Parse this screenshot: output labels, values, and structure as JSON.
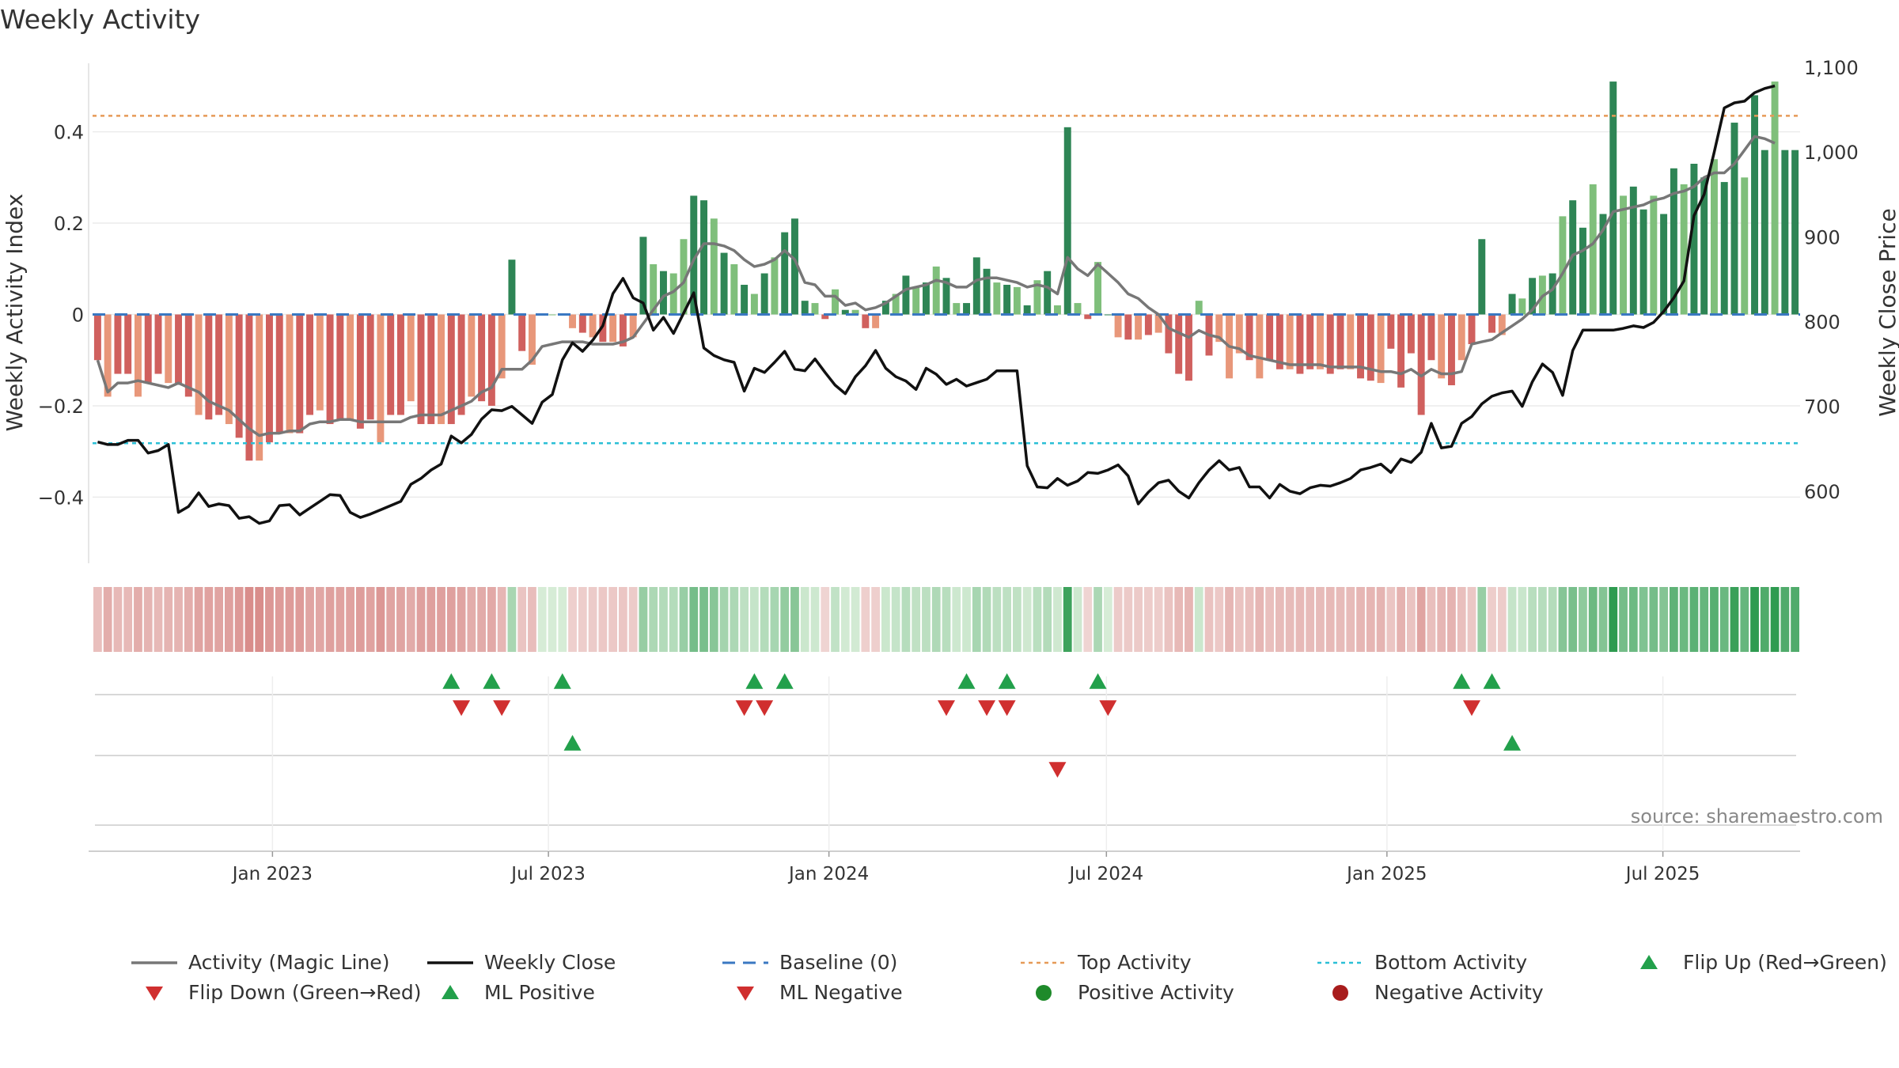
{
  "chart_data": {
    "type": "bar+line",
    "title": "Weekly Activity",
    "ylabel_left": "Weekly Activity Index",
    "ylabel_right": "Weekly Close Price",
    "source": "source: sharemaestro.com",
    "left_ylim": [
      -0.55,
      0.55
    ],
    "left_ticks": [
      {
        "v": 0.4,
        "label": "0.4"
      },
      {
        "v": 0.2,
        "label": "0.2"
      },
      {
        "v": 0,
        "label": "0"
      },
      {
        "v": -0.2,
        "label": "−0.2"
      },
      {
        "v": -0.4,
        "label": "−0.4"
      }
    ],
    "right_ylim": [
      515,
      1100
    ],
    "right_ticks": [
      {
        "v": 1100,
        "label": "1,100"
      },
      {
        "v": 1000,
        "label": "1,000"
      },
      {
        "v": 900,
        "label": "900"
      },
      {
        "v": 800,
        "label": "800"
      },
      {
        "v": 700,
        "label": "700"
      },
      {
        "v": 600,
        "label": "600"
      }
    ],
    "top_activity_level": 0.435,
    "bottom_activity_level": -0.282,
    "x_start": "2022-09-05",
    "x_end": "2025-09-29",
    "x_ticks": [
      {
        "date": "2023-01-01",
        "label": "Jan 2023"
      },
      {
        "date": "2023-07-01",
        "label": "Jul 2023"
      },
      {
        "date": "2024-01-01",
        "label": "Jan 2024"
      },
      {
        "date": "2024-07-01",
        "label": "Jul 2024"
      },
      {
        "date": "2025-01-01",
        "label": "Jan 2025"
      },
      {
        "date": "2025-07-01",
        "label": "Jul 2025"
      }
    ],
    "series": [
      {
        "name": "Weekly Activity",
        "kind": "bar",
        "values": [
          -0.1,
          -0.18,
          -0.13,
          -0.13,
          -0.18,
          -0.15,
          -0.13,
          -0.15,
          -0.15,
          -0.18,
          -0.22,
          -0.23,
          -0.22,
          -0.24,
          -0.27,
          -0.32,
          -0.32,
          -0.28,
          -0.26,
          -0.26,
          -0.26,
          -0.22,
          -0.21,
          -0.24,
          -0.23,
          -0.23,
          -0.25,
          -0.23,
          -0.28,
          -0.22,
          -0.22,
          -0.19,
          -0.24,
          -0.24,
          -0.24,
          -0.24,
          -0.22,
          -0.18,
          -0.19,
          -0.2,
          -0.14,
          0.12,
          -0.08,
          -0.11,
          0,
          0,
          0,
          -0.03,
          -0.04,
          -0.05,
          -0.06,
          -0.06,
          -0.07,
          -0.05,
          0.17,
          0.11,
          0.095,
          0.09,
          0.165,
          0.26,
          0.25,
          0.21,
          0.135,
          0.11,
          0.065,
          0.045,
          0.09,
          0.125,
          0.18,
          0.21,
          0.03,
          0.025,
          -0.01,
          0.055,
          0.01,
          0.01,
          -0.03,
          -0.03,
          0.03,
          0.045,
          0.085,
          0.06,
          0.07,
          0.105,
          0.08,
          0.025,
          0.025,
          0.125,
          0.1,
          0.07,
          0.065,
          0.06,
          0.02,
          0.075,
          0.095,
          0.02,
          0.41,
          0.025,
          -0.01,
          0.115,
          0,
          -0.05,
          -0.055,
          -0.055,
          -0.045,
          -0.04,
          -0.085,
          -0.13,
          -0.145,
          0.03,
          -0.09,
          -0.06,
          -0.14,
          -0.085,
          -0.1,
          -0.14,
          -0.1,
          -0.12,
          -0.12,
          -0.13,
          -0.12,
          -0.12,
          -0.13,
          -0.12,
          -0.12,
          -0.14,
          -0.145,
          -0.15,
          -0.075,
          -0.16,
          -0.085,
          -0.22,
          -0.1,
          -0.14,
          -0.155,
          -0.1,
          -0.065,
          0.165,
          -0.04,
          -0.045,
          0.045,
          0.035,
          0.08,
          0.085,
          0.09,
          0.215,
          0.25,
          0.19,
          0.285,
          0.22,
          0.51,
          0.26,
          0.28,
          0.23,
          0.26,
          0.22,
          0.32,
          0.285,
          0.33,
          0.3,
          0.34,
          0.29,
          0.42,
          0.3,
          0.48,
          0.36,
          0.51,
          0.36,
          0.36
        ]
      },
      {
        "name": "Activity (Magic Line)",
        "kind": "line",
        "values": [
          -0.1,
          -0.17,
          -0.15,
          -0.15,
          -0.145,
          -0.15,
          -0.155,
          -0.16,
          -0.15,
          -0.16,
          -0.17,
          -0.19,
          -0.2,
          -0.21,
          -0.23,
          -0.25,
          -0.265,
          -0.26,
          -0.26,
          -0.255,
          -0.255,
          -0.24,
          -0.235,
          -0.235,
          -0.23,
          -0.23,
          -0.235,
          -0.235,
          -0.235,
          -0.235,
          -0.235,
          -0.225,
          -0.22,
          -0.22,
          -0.22,
          -0.21,
          -0.2,
          -0.19,
          -0.17,
          -0.16,
          -0.12,
          -0.12,
          -0.12,
          -0.1,
          -0.07,
          -0.065,
          -0.06,
          -0.06,
          -0.06,
          -0.065,
          -0.065,
          -0.065,
          -0.06,
          -0.05,
          -0.02,
          0.01,
          0.04,
          0.05,
          0.07,
          0.12,
          0.155,
          0.155,
          0.15,
          0.14,
          0.12,
          0.105,
          0.11,
          0.12,
          0.14,
          0.12,
          0.07,
          0.065,
          0.04,
          0.04,
          0.02,
          0.025,
          0.01,
          0.015,
          0.025,
          0.04,
          0.055,
          0.06,
          0.065,
          0.075,
          0.07,
          0.06,
          0.06,
          0.075,
          0.08,
          0.08,
          0.075,
          0.07,
          0.06,
          0.065,
          0.06,
          0.045,
          0.125,
          0.1,
          0.085,
          0.11,
          0.09,
          0.07,
          0.045,
          0.035,
          0.015,
          0,
          -0.03,
          -0.04,
          -0.05,
          -0.035,
          -0.045,
          -0.05,
          -0.07,
          -0.075,
          -0.09,
          -0.095,
          -0.1,
          -0.105,
          -0.11,
          -0.11,
          -0.11,
          -0.11,
          -0.115,
          -0.115,
          -0.115,
          -0.115,
          -0.12,
          -0.125,
          -0.125,
          -0.13,
          -0.12,
          -0.135,
          -0.12,
          -0.13,
          -0.13,
          -0.125,
          -0.065,
          -0.06,
          -0.055,
          -0.04,
          -0.025,
          -0.01,
          0.01,
          0.04,
          0.055,
          0.09,
          0.13,
          0.14,
          0.155,
          0.185,
          0.225,
          0.23,
          0.235,
          0.24,
          0.25,
          0.255,
          0.265,
          0.27,
          0.28,
          0.3,
          0.31,
          0.31,
          0.33,
          0.36,
          0.39,
          0.385,
          0.375
        ]
      },
      {
        "name": "Weekly Close",
        "kind": "line",
        "axis": "right",
        "values": [
          658,
          655,
          655,
          660,
          660,
          645,
          648,
          655,
          575,
          582,
          598,
          582,
          585,
          583,
          568,
          570,
          562,
          565,
          583,
          584,
          572,
          580,
          588,
          596,
          595,
          575,
          569,
          573,
          578,
          583,
          588,
          608,
          615,
          625,
          632,
          665,
          657,
          667,
          685,
          696,
          695,
          700,
          690,
          680,
          705,
          714,
          755,
          775,
          765,
          778,
          795,
          833,
          851,
          828,
          822,
          790,
          805,
          786,
          810,
          834,
          769,
          760,
          755,
          752,
          718,
          745,
          740,
          752,
          765,
          744,
          742,
          756,
          740,
          725,
          715,
          735,
          748,
          766,
          745,
          735,
          730,
          720,
          745,
          738,
          726,
          732,
          724,
          728,
          732,
          742,
          742,
          742,
          630,
          605,
          604,
          615,
          607,
          612,
          622,
          621,
          625,
          631,
          618,
          585,
          599,
          610,
          613,
          600,
          592,
          610,
          625,
          636,
          625,
          628,
          605,
          605,
          592,
          608,
          600,
          597,
          604,
          607,
          606,
          610,
          615,
          625,
          628,
          632,
          622,
          638,
          634,
          646,
          680,
          651,
          653,
          680,
          688,
          703,
          712,
          716,
          718,
          700,
          729,
          750,
          740,
          713,
          766,
          790,
          790,
          790,
          790,
          792,
          795,
          793,
          799,
          812,
          828,
          848,
          925,
          950,
          1000,
          1052,
          1058,
          1060,
          1070,
          1075,
          1078
        ]
      }
    ],
    "legend": [
      {
        "label": "Activity (Magic Line)",
        "symbol": "line-gray"
      },
      {
        "label": "Weekly Close",
        "symbol": "line-black"
      },
      {
        "label": "Baseline (0)",
        "symbol": "dash-blue"
      },
      {
        "label": "Top Activity",
        "symbol": "dot-orange"
      },
      {
        "label": "Bottom Activity",
        "symbol": "dot-cyan"
      },
      {
        "label": "Flip Up (Red→Green)",
        "symbol": "tri-up-green"
      },
      {
        "label": "Flip Down (Green→Red)",
        "symbol": "tri-down-red"
      },
      {
        "label": "ML Positive",
        "symbol": "tri-up-green"
      },
      {
        "label": "ML Negative",
        "symbol": "tri-down-red"
      },
      {
        "label": "Positive Activity",
        "symbol": "circle-green"
      },
      {
        "label": "Negative Activity",
        "symbol": "circle-red"
      }
    ],
    "flip_up_weeks": [
      35,
      39,
      46,
      65,
      68,
      86,
      90,
      99,
      135,
      138
    ],
    "flip_down_weeks": [
      36,
      40,
      64,
      66,
      84,
      88,
      90,
      100,
      136
    ],
    "ml_positive_weeks": [
      47,
      140
    ],
    "ml_negative_weeks": [
      95
    ],
    "colors": {
      "pos_strong": "#2e8555",
      "pos_light": "#7fbf7b",
      "neg_strong": "#d0605e",
      "neg_light": "#e8977a",
      "magic_line": "#777777",
      "close": "#111111",
      "baseline": "#3a78c2",
      "top": "#e69a57",
      "bottom": "#2bbfd6",
      "marker_green": "#22a04b",
      "marker_red": "#d02f2f"
    }
  }
}
